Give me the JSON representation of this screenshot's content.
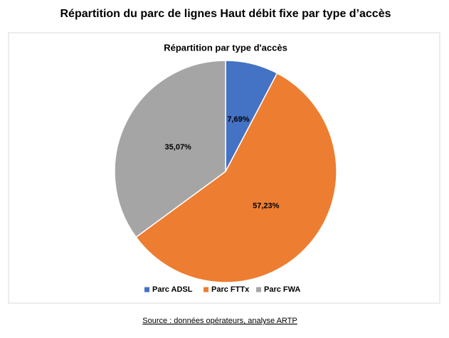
{
  "header": {
    "title": "Répartition du parc de lignes Haut débit fixe par type d’accès"
  },
  "chart_data": {
    "type": "pie",
    "title": "Répartition par type d'accès",
    "categories": [
      "Parc ADSL",
      "Parc FTTx",
      "Parc FWA"
    ],
    "values": [
      7.69,
      57.23,
      35.07
    ],
    "value_labels": [
      "7,69%",
      "57,23%",
      "35,07%"
    ],
    "colors": [
      "#4472c4",
      "#ed7d31",
      "#a5a5a5"
    ],
    "legend": "bottom"
  },
  "footer": {
    "source": "Source : données opérateurs, analyse ARTP"
  }
}
